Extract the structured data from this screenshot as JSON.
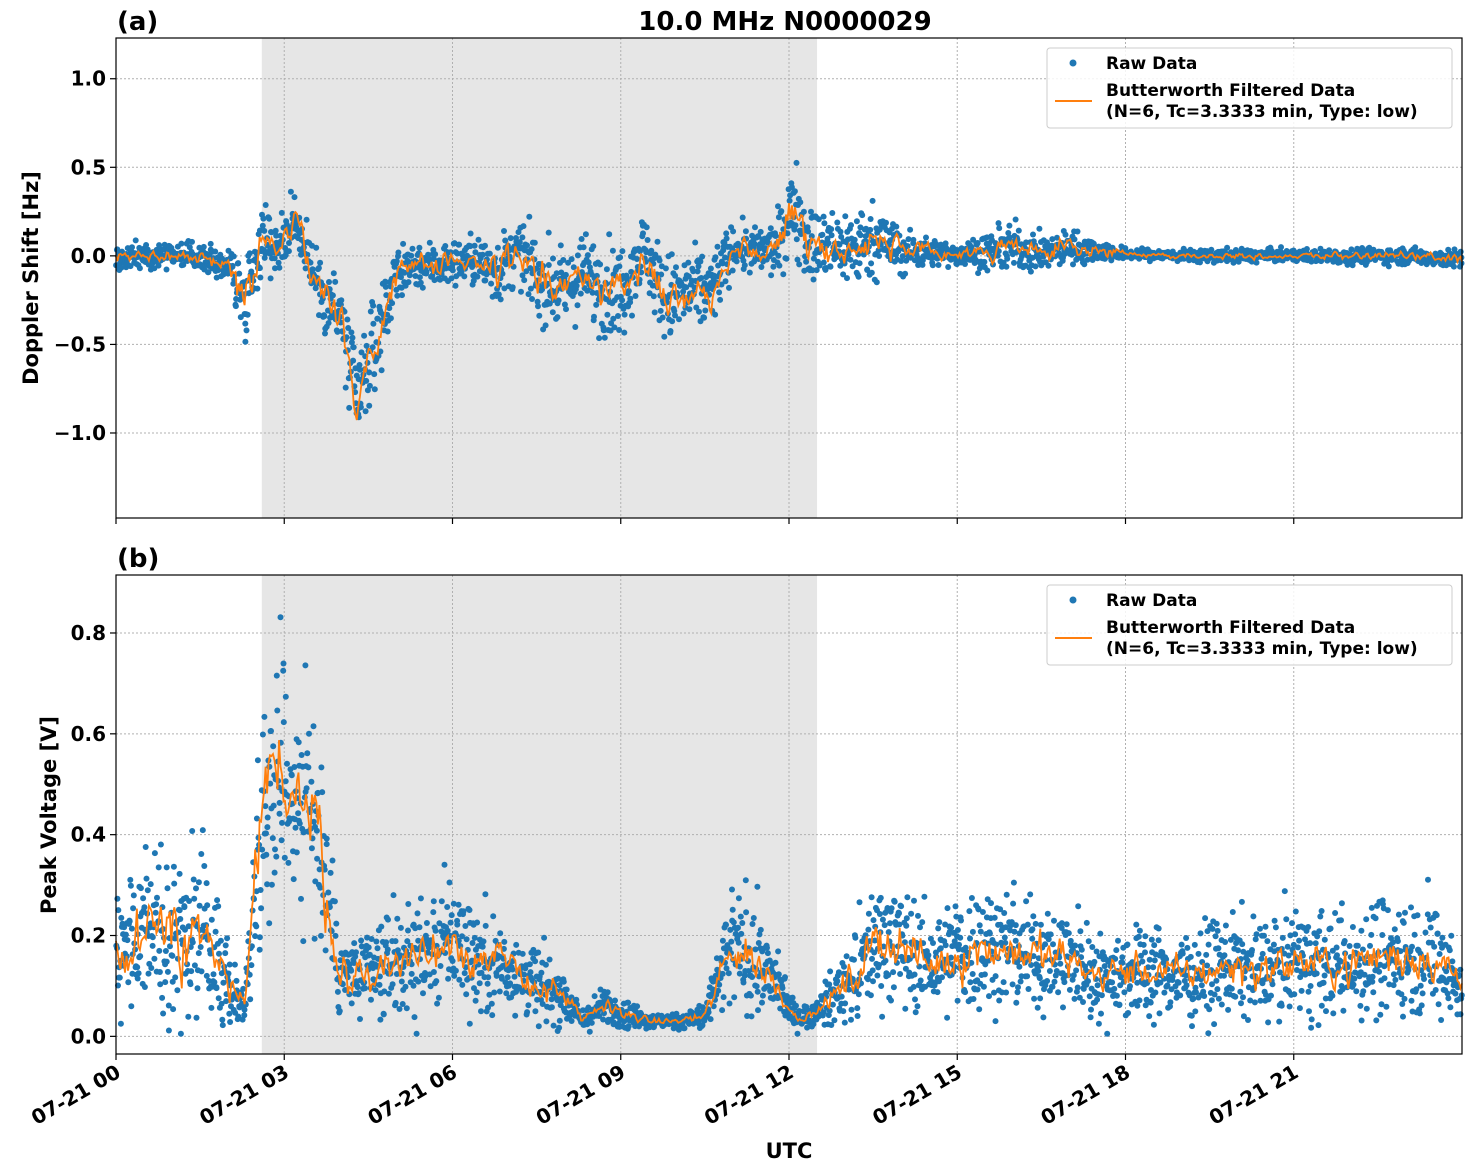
{
  "figure_title": "10.0 MHz N0000029",
  "colors": {
    "raw": "#1f77b4",
    "filtered": "#ff7f0e",
    "shade": "#e6e6e6",
    "grid": "#b0b0b0"
  },
  "chart_data": [
    {
      "type": "scatter",
      "panel_label": "(a)",
      "title": "10.0 MHz N0000029",
      "xlabel": "",
      "ylabel": "Doppler Shift [Hz]",
      "x_unit": "hours UTC on 07-21",
      "xlim": [
        0,
        24
      ],
      "ylim": [
        -1.48,
        1.23
      ],
      "yticks": [
        1.0,
        0.5,
        0.0,
        -0.5,
        -1.0
      ],
      "ytick_labels": [
        "1.0",
        "0.5",
        "0.0",
        "−0.5",
        "−1.0"
      ],
      "grid": true,
      "shaded_interval": [
        2.6,
        12.5
      ],
      "legend": {
        "placement": "top-right",
        "entries": [
          "Raw Data",
          "Butterworth Filtered Data",
          "(N=6, Tc=3.3333 min, Type: low)"
        ]
      },
      "series": [
        {
          "name": "Raw Data",
          "style": "points",
          "x": [
            0,
            0.5,
            1,
            1.5,
            2,
            2.3,
            2.6,
            2.9,
            3.2,
            3.6,
            4,
            4.3,
            4.6,
            5,
            5.3,
            5.8,
            6.3,
            6.8,
            7.2,
            7.6,
            8,
            8.3,
            8.7,
            9,
            9.4,
            9.8,
            10.2,
            10.6,
            11,
            11.4,
            11.8,
            12.1,
            12.4,
            12.8,
            13.2,
            13.6,
            14,
            14.5,
            15,
            15.5,
            16,
            16.5,
            17,
            18,
            19,
            20,
            21,
            22,
            23,
            24
          ],
          "y_center": [
            -0.02,
            0,
            0.01,
            -0.01,
            -0.05,
            -0.25,
            0.1,
            0.05,
            0.2,
            -0.15,
            -0.35,
            -0.85,
            -0.5,
            -0.1,
            -0.05,
            -0.05,
            -0.02,
            -0.08,
            0.02,
            -0.15,
            -0.2,
            -0.1,
            -0.18,
            -0.2,
            0.05,
            -0.25,
            -0.2,
            -0.2,
            0.05,
            0.02,
            0.05,
            0.3,
            0.05,
            0.05,
            0.05,
            0.1,
            0.02,
            0.02,
            0.01,
            0.02,
            0.05,
            0.01,
            0.05,
            0.01,
            0,
            0,
            0,
            0,
            0,
            -0.02
          ],
          "y_spread": [
            0.12,
            0.1,
            0.1,
            0.1,
            0.15,
            0.35,
            0.3,
            0.25,
            0.25,
            0.3,
            0.45,
            0.45,
            0.4,
            0.25,
            0.2,
            0.2,
            0.2,
            0.3,
            0.25,
            0.35,
            0.3,
            0.35,
            0.4,
            0.4,
            0.3,
            0.4,
            0.35,
            0.35,
            0.2,
            0.2,
            0.25,
            0.4,
            0.35,
            0.3,
            0.35,
            0.3,
            0.2,
            0.12,
            0.1,
            0.15,
            0.2,
            0.15,
            0.15,
            0.05,
            0.05,
            0.06,
            0.05,
            0.07,
            0.07,
            0.08
          ]
        },
        {
          "name": "Butterworth Filtered Data",
          "style": "line",
          "x": [
            0,
            0.5,
            1,
            1.5,
            2,
            2.3,
            2.6,
            2.9,
            3.2,
            3.6,
            4,
            4.3,
            4.6,
            5,
            5.3,
            5.8,
            6.3,
            6.8,
            7.2,
            7.6,
            8,
            8.3,
            8.7,
            9,
            9.4,
            9.8,
            10.2,
            10.6,
            11,
            11.4,
            11.8,
            12.1,
            12.4,
            12.8,
            13.2,
            13.6,
            14,
            14.5,
            15,
            15.5,
            16,
            16.5,
            17,
            18,
            19,
            20,
            21,
            22,
            23,
            24
          ],
          "y": [
            -0.02,
            0,
            0.01,
            -0.01,
            -0.05,
            -0.25,
            0.1,
            0.05,
            0.2,
            -0.15,
            -0.35,
            -0.85,
            -0.5,
            -0.1,
            -0.05,
            -0.05,
            -0.02,
            -0.08,
            0.02,
            -0.15,
            -0.2,
            -0.1,
            -0.18,
            -0.2,
            0.05,
            -0.25,
            -0.2,
            -0.2,
            0.05,
            0.02,
            0.05,
            0.3,
            0.05,
            0.05,
            0.05,
            0.1,
            0.02,
            0.02,
            0.01,
            0.02,
            0.05,
            0.01,
            0.05,
            0.01,
            0,
            0,
            0,
            0,
            0,
            -0.02
          ]
        }
      ]
    },
    {
      "type": "scatter",
      "panel_label": "(b)",
      "title": "",
      "xlabel": "UTC",
      "ylabel": "Peak Voltage [V]",
      "x_unit": "hours UTC on 07-21",
      "xlim": [
        0,
        24
      ],
      "ylim": [
        -0.035,
        0.915
      ],
      "yticks": [
        0.8,
        0.6,
        0.4,
        0.2,
        0.0
      ],
      "ytick_labels": [
        "0.8",
        "0.6",
        "0.4",
        "0.2",
        "0.0"
      ],
      "xticks": [
        0,
        3,
        6,
        9,
        12,
        15,
        18,
        21
      ],
      "xtick_labels": [
        "07-21 00",
        "07-21 03",
        "07-21 06",
        "07-21 09",
        "07-21 12",
        "07-21 15",
        "07-21 18",
        "07-21 21"
      ],
      "grid": true,
      "shaded_interval": [
        2.6,
        12.5
      ],
      "legend": {
        "placement": "top-right",
        "entries": [
          "Raw Data",
          "Butterworth Filtered Data",
          "(N=6, Tc=3.3333 min, Type: low)"
        ]
      },
      "series": [
        {
          "name": "Raw Data",
          "style": "points",
          "x": [
            0,
            0.5,
            1,
            1.5,
            2,
            2.3,
            2.6,
            2.9,
            3.2,
            3.6,
            4,
            4.5,
            5,
            5.5,
            6,
            6.5,
            7,
            7.5,
            8,
            8.3,
            8.7,
            9,
            9.5,
            10,
            10.5,
            11,
            11.4,
            11.8,
            12.1,
            12.4,
            12.8,
            13.2,
            13.6,
            14,
            14.5,
            15,
            15.5,
            16,
            16.5,
            17,
            17.5,
            18,
            18.5,
            19,
            19.5,
            20,
            20.5,
            21,
            21.5,
            22,
            22.5,
            23,
            23.5,
            24
          ],
          "y_center": [
            0.18,
            0.2,
            0.22,
            0.2,
            0.1,
            0.06,
            0.45,
            0.55,
            0.5,
            0.4,
            0.12,
            0.12,
            0.15,
            0.16,
            0.2,
            0.15,
            0.14,
            0.1,
            0.08,
            0.03,
            0.06,
            0.05,
            0.03,
            0.03,
            0.04,
            0.18,
            0.15,
            0.1,
            0.04,
            0.04,
            0.08,
            0.12,
            0.2,
            0.18,
            0.14,
            0.16,
            0.18,
            0.17,
            0.16,
            0.15,
            0.12,
            0.13,
            0.13,
            0.12,
            0.13,
            0.14,
            0.13,
            0.15,
            0.14,
            0.14,
            0.16,
            0.16,
            0.16,
            0.1
          ],
          "y_spread": [
            0.15,
            0.2,
            0.22,
            0.2,
            0.12,
            0.05,
            0.3,
            0.3,
            0.3,
            0.3,
            0.12,
            0.12,
            0.14,
            0.15,
            0.16,
            0.14,
            0.12,
            0.1,
            0.07,
            0.03,
            0.05,
            0.04,
            0.02,
            0.02,
            0.04,
            0.16,
            0.14,
            0.08,
            0.03,
            0.03,
            0.07,
            0.12,
            0.16,
            0.16,
            0.12,
            0.16,
            0.16,
            0.15,
            0.14,
            0.13,
            0.11,
            0.12,
            0.12,
            0.11,
            0.12,
            0.13,
            0.12,
            0.14,
            0.13,
            0.13,
            0.15,
            0.15,
            0.15,
            0.1
          ]
        },
        {
          "name": "Butterworth Filtered Data",
          "style": "line",
          "x": [
            0,
            0.5,
            1,
            1.5,
            2,
            2.3,
            2.6,
            2.9,
            3.2,
            3.6,
            4,
            4.5,
            5,
            5.5,
            6,
            6.5,
            7,
            7.5,
            8,
            8.3,
            8.7,
            9,
            9.5,
            10,
            10.5,
            11,
            11.4,
            11.8,
            12.1,
            12.4,
            12.8,
            13.2,
            13.6,
            14,
            14.5,
            15,
            15.5,
            16,
            16.5,
            17,
            17.5,
            18,
            18.5,
            19,
            19.5,
            20,
            20.5,
            21,
            21.5,
            22,
            22.5,
            23,
            23.5,
            24
          ],
          "y": [
            0.18,
            0.2,
            0.22,
            0.2,
            0.1,
            0.06,
            0.45,
            0.55,
            0.5,
            0.4,
            0.12,
            0.12,
            0.15,
            0.16,
            0.2,
            0.15,
            0.14,
            0.1,
            0.08,
            0.03,
            0.06,
            0.05,
            0.03,
            0.03,
            0.04,
            0.18,
            0.15,
            0.1,
            0.04,
            0.04,
            0.08,
            0.12,
            0.2,
            0.18,
            0.14,
            0.16,
            0.18,
            0.17,
            0.16,
            0.15,
            0.12,
            0.13,
            0.13,
            0.12,
            0.13,
            0.14,
            0.13,
            0.15,
            0.14,
            0.14,
            0.16,
            0.16,
            0.16,
            0.1
          ]
        }
      ]
    }
  ]
}
